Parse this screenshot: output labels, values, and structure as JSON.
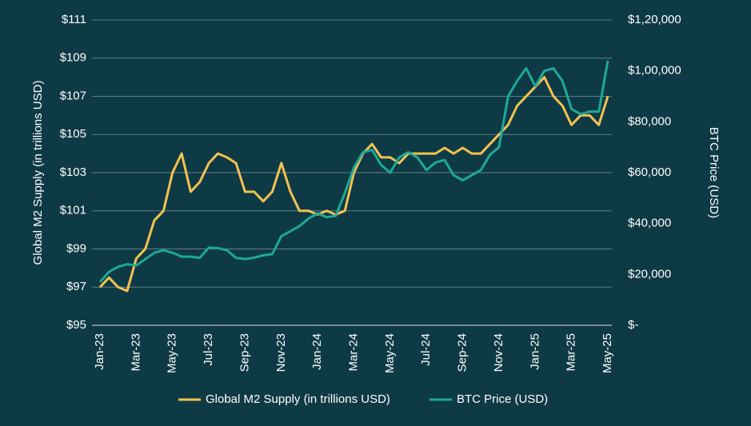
{
  "chart_data": {
    "type": "line",
    "y_label": "Global M2 Supply (in trillions USD)",
    "y2_label": "BTC Price (USD)",
    "categories": [
      "Jan-23",
      null,
      null,
      null,
      "Mar-23",
      null,
      null,
      null,
      "May-23",
      null,
      null,
      null,
      "Jul-23",
      null,
      null,
      null,
      "Sep-23",
      null,
      null,
      null,
      "Nov-23",
      null,
      null,
      null,
      "Jan-24",
      null,
      null,
      null,
      "Mar-24",
      null,
      null,
      null,
      "May-24",
      null,
      null,
      null,
      "Jul-24",
      null,
      null,
      null,
      "Sep-24",
      null,
      null,
      null,
      "Nov-24",
      null,
      null,
      null,
      "Jan-25",
      null,
      null,
      null,
      "Mar-25",
      null,
      null,
      null,
      "May-25"
    ],
    "series": [
      {
        "name": "Global M2 Supply (in trillions USD)",
        "color": "#f4c24f",
        "values": [
          97.0,
          97.5,
          97.0,
          96.8,
          98.5,
          99.0,
          100.5,
          101.0,
          103.0,
          104.0,
          102.0,
          102.5,
          103.5,
          104.0,
          103.8,
          103.5,
          102.0,
          102.0,
          101.5,
          102.0,
          103.5,
          102.0,
          101.0,
          101.0,
          100.8,
          101.0,
          100.8,
          101.0,
          103.0,
          104.0,
          104.5,
          103.8,
          103.8,
          103.5,
          104.0,
          104.0,
          104.0,
          104.0,
          104.3,
          104.0,
          104.3,
          104.0,
          104.0,
          104.5,
          105.0,
          105.5,
          106.5,
          107.0,
          107.5,
          108.0,
          107.0,
          106.5,
          105.5,
          106.0,
          106.0,
          105.5,
          107.0
        ]
      },
      {
        "name": "BTC Price (USD)",
        "color": "#1fa898",
        "axis": "y2",
        "values": [
          17000,
          21000,
          23000,
          24000,
          23500,
          26000,
          28500,
          29500,
          28500,
          27000,
          27000,
          26500,
          30500,
          30300,
          29500,
          26500,
          26000,
          26600,
          27500,
          28000,
          35000,
          37000,
          39000,
          42000,
          44000,
          42500,
          43000,
          52000,
          62000,
          68000,
          69000,
          63000,
          60000,
          66000,
          68000,
          66000,
          61000,
          64000,
          65000,
          59000,
          57000,
          59000,
          61000,
          67000,
          70000,
          90000,
          96000,
          101000,
          94000,
          100000,
          101000,
          96000,
          85000,
          83000,
          84000,
          84000,
          104000
        ]
      }
    ],
    "ylim": [
      95,
      111
    ],
    "yticks": [
      {
        "value": 95,
        "label": "$95"
      },
      {
        "value": 97,
        "label": "$97"
      },
      {
        "value": 99,
        "label": "$99"
      },
      {
        "value": 101,
        "label": "$101"
      },
      {
        "value": 103,
        "label": "$103"
      },
      {
        "value": 105,
        "label": "$105"
      },
      {
        "value": 107,
        "label": "$107"
      },
      {
        "value": 109,
        "label": "$109"
      },
      {
        "value": 111,
        "label": "$111"
      }
    ],
    "y2lim": [
      0,
      120000
    ],
    "y2ticks": [
      {
        "value": 0,
        "label": "$-"
      },
      {
        "value": 20000,
        "label": "$20,000"
      },
      {
        "value": 40000,
        "label": "$40,000"
      },
      {
        "value": 60000,
        "label": "$60,000"
      },
      {
        "value": 80000,
        "label": "$80,000"
      },
      {
        "value": 100000,
        "label": "$1,00,000"
      },
      {
        "value": 120000,
        "label": "$1,20,000"
      }
    ],
    "grid": true,
    "legend": "bottom"
  }
}
